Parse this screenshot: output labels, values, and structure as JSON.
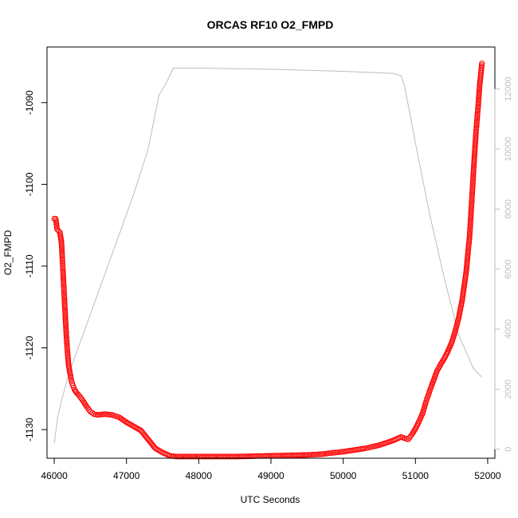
{
  "chart_data": {
    "type": "scatter",
    "title": "ORCAS RF10 O2_FMPD",
    "xlabel": "UTC Seconds",
    "ylabel": "O2_FMPD",
    "xlim": [
      45900,
      52100
    ],
    "ylim": [
      -1133.5,
      -1083.2
    ],
    "x_ticks": [
      "46000",
      "47000",
      "48000",
      "49000",
      "50000",
      "51000",
      "52000"
    ],
    "y_ticks": [
      "-1130",
      "-1120",
      "-1110",
      "-1100",
      "-1090"
    ],
    "y2lim": [
      -300,
      13400
    ],
    "y2_ticks": [
      "0",
      "2000",
      "4000",
      "6000",
      "8000",
      "10000",
      "12000"
    ],
    "grid": false,
    "series": [
      {
        "kind": "points",
        "color": "#ff0000",
        "points": [
          [
            46000,
            -1104.2
          ],
          [
            46020,
            -1104.2
          ],
          [
            46040,
            -1105.5
          ],
          [
            46060,
            -1105.7
          ],
          [
            46080,
            -1105.9
          ],
          [
            46100,
            -1107.1
          ],
          [
            46110,
            -1108.8
          ],
          [
            46120,
            -1110.4
          ],
          [
            46130,
            -1112.1
          ],
          [
            46140,
            -1113.9
          ],
          [
            46150,
            -1115.6
          ],
          [
            46160,
            -1117.3
          ],
          [
            46170,
            -1118.8
          ],
          [
            46180,
            -1120.1
          ],
          [
            46190,
            -1121.2
          ],
          [
            46200,
            -1122.2
          ],
          [
            46220,
            -1123.2
          ],
          [
            46240,
            -1124.1
          ],
          [
            46260,
            -1124.6
          ],
          [
            46280,
            -1125.1
          ],
          [
            46300,
            -1125.4
          ],
          [
            46350,
            -1125.9
          ],
          [
            46400,
            -1126.5
          ],
          [
            46450,
            -1127.2
          ],
          [
            46500,
            -1127.8
          ],
          [
            46550,
            -1128.1
          ],
          [
            46600,
            -1128.2
          ],
          [
            46700,
            -1128.1
          ],
          [
            46800,
            -1128.2
          ],
          [
            46900,
            -1128.5
          ],
          [
            47000,
            -1129.1
          ],
          [
            47100,
            -1129.6
          ],
          [
            47200,
            -1130.1
          ],
          [
            47300,
            -1131.2
          ],
          [
            47400,
            -1132.3
          ],
          [
            47500,
            -1132.8
          ],
          [
            47600,
            -1133.2
          ],
          [
            47700,
            -1133.3
          ],
          [
            48000,
            -1133.3
          ],
          [
            48500,
            -1133.3
          ],
          [
            49000,
            -1133.2
          ],
          [
            49500,
            -1133.1
          ],
          [
            49700,
            -1133.0
          ],
          [
            50000,
            -1132.7
          ],
          [
            50300,
            -1132.3
          ],
          [
            50500,
            -1131.9
          ],
          [
            50700,
            -1131.3
          ],
          [
            50800,
            -1130.9
          ],
          [
            50900,
            -1131.2
          ],
          [
            50950,
            -1130.6
          ],
          [
            51000,
            -1129.9
          ],
          [
            51050,
            -1129.0
          ],
          [
            51100,
            -1128.0
          ],
          [
            51150,
            -1126.5
          ],
          [
            51200,
            -1125.2
          ],
          [
            51250,
            -1124.0
          ],
          [
            51300,
            -1122.8
          ],
          [
            51350,
            -1122.0
          ],
          [
            51400,
            -1121.3
          ],
          [
            51450,
            -1120.4
          ],
          [
            51500,
            -1119.4
          ],
          [
            51550,
            -1118.0
          ],
          [
            51600,
            -1116.3
          ],
          [
            51650,
            -1114.0
          ],
          [
            51700,
            -1110.9
          ],
          [
            51750,
            -1106.3
          ],
          [
            51780,
            -1102.0
          ],
          [
            51810,
            -1097.5
          ],
          [
            51840,
            -1093.5
          ],
          [
            51870,
            -1090.2
          ],
          [
            51890,
            -1087.8
          ],
          [
            51905,
            -1086.6
          ],
          [
            51920,
            -1085.2
          ]
        ]
      },
      {
        "kind": "line",
        "axis": "right",
        "color": "#bdbdbd",
        "points": [
          [
            46000,
            200
          ],
          [
            46050,
            1100
          ],
          [
            46100,
            1600
          ],
          [
            46200,
            2500
          ],
          [
            46500,
            4500
          ],
          [
            46800,
            6500
          ],
          [
            47100,
            8500
          ],
          [
            47300,
            10000
          ],
          [
            47450,
            11800
          ],
          [
            47550,
            12200
          ],
          [
            47650,
            12700
          ],
          [
            48000,
            12700
          ],
          [
            49000,
            12660
          ],
          [
            50000,
            12590
          ],
          [
            50700,
            12520
          ],
          [
            50800,
            12440
          ],
          [
            50850,
            12100
          ],
          [
            51000,
            10200
          ],
          [
            51200,
            7800
          ],
          [
            51400,
            5700
          ],
          [
            51600,
            3800
          ],
          [
            51800,
            2700
          ],
          [
            51920,
            2400
          ]
        ]
      }
    ]
  }
}
